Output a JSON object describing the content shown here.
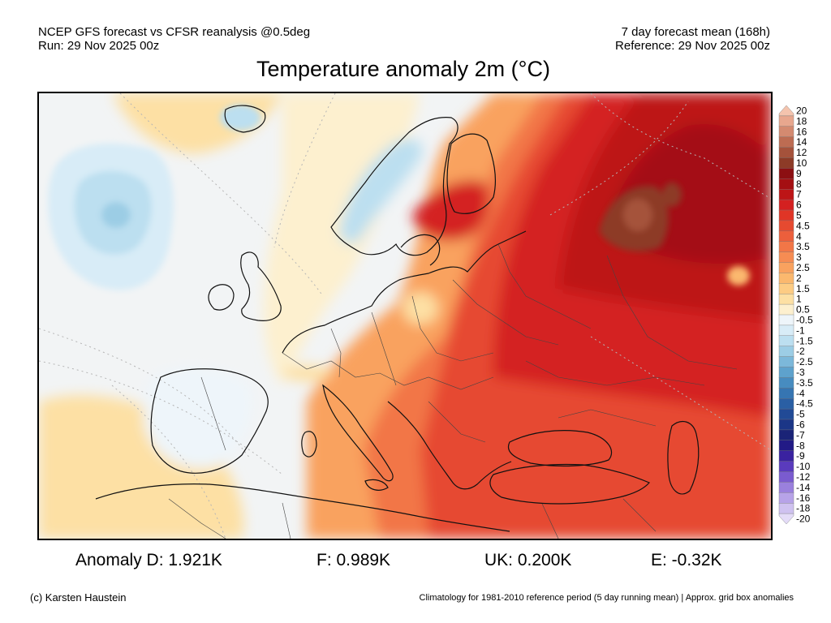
{
  "header": {
    "line1_left": "NCEP GFS forecast vs CFSR reanalysis @0.5deg",
    "line2_left": "Run: 29 Nov 2025 00z",
    "line1_right": "7 day forecast mean (168h)",
    "line2_right": "Reference: 29 Nov 2025 00z"
  },
  "title": "Temperature anomaly 2m (°C)",
  "stats": {
    "d": "Anomaly D: 1.921K",
    "f": "F: 0.989K",
    "uk": "UK: 0.200K",
    "e": "E: -0.32K"
  },
  "credit": "(c) Karsten Haustein",
  "footnote": "Climatology for 1981-2010 reference period (5 day running mean) | Approx. grid box anomalies",
  "legend": {
    "levels": [
      {
        "label": "20",
        "color": "#f4c4ae"
      },
      {
        "label": "18",
        "color": "#e8a78e"
      },
      {
        "label": "16",
        "color": "#d48a70"
      },
      {
        "label": "14",
        "color": "#bd6c52"
      },
      {
        "label": "12",
        "color": "#a5523b"
      },
      {
        "label": "10",
        "color": "#8d3b27"
      },
      {
        "label": "9",
        "color": "#8c0f12"
      },
      {
        "label": "8",
        "color": "#a40f12"
      },
      {
        "label": "7",
        "color": "#bd1516"
      },
      {
        "label": "6",
        "color": "#d42020"
      },
      {
        "label": "5",
        "color": "#e03526"
      },
      {
        "label": "4.5",
        "color": "#e64a30"
      },
      {
        "label": "4",
        "color": "#ec5f3c"
      },
      {
        "label": "3.5",
        "color": "#f27647"
      },
      {
        "label": "3",
        "color": "#f68c53"
      },
      {
        "label": "2.5",
        "color": "#f9a25f"
      },
      {
        "label": "2",
        "color": "#fbb86e"
      },
      {
        "label": "1.5",
        "color": "#fdcc84"
      },
      {
        "label": "1",
        "color": "#fde0a4"
      },
      {
        "label": "0.5",
        "color": "#fdf0cf"
      },
      {
        "label": "-0.5",
        "color": "#eef5fa"
      },
      {
        "label": "-1",
        "color": "#d8ecf7"
      },
      {
        "label": "-1.5",
        "color": "#bcdff0"
      },
      {
        "label": "-2",
        "color": "#9ccde5"
      },
      {
        "label": "-2.5",
        "color": "#7cb8da"
      },
      {
        "label": "-3",
        "color": "#5ea2cd"
      },
      {
        "label": "-3.5",
        "color": "#478cc0"
      },
      {
        "label": "-4",
        "color": "#3675b2"
      },
      {
        "label": "-4.5",
        "color": "#2a5fa4"
      },
      {
        "label": "-5",
        "color": "#214a96"
      },
      {
        "label": "-6",
        "color": "#1b3687"
      },
      {
        "label": "-7",
        "color": "#1a2377"
      },
      {
        "label": "-8",
        "color": "#221a86"
      },
      {
        "label": "-9",
        "color": "#3a22a0"
      },
      {
        "label": "-10",
        "color": "#5a3bbd"
      },
      {
        "label": "-12",
        "color": "#7a5bcf"
      },
      {
        "label": "-14",
        "color": "#9a80dd"
      },
      {
        "label": "-16",
        "color": "#b7a3e8"
      },
      {
        "label": "-18",
        "color": "#cfc2f0"
      },
      {
        "label": "-20",
        "color": "#e4dcf8"
      }
    ]
  }
}
